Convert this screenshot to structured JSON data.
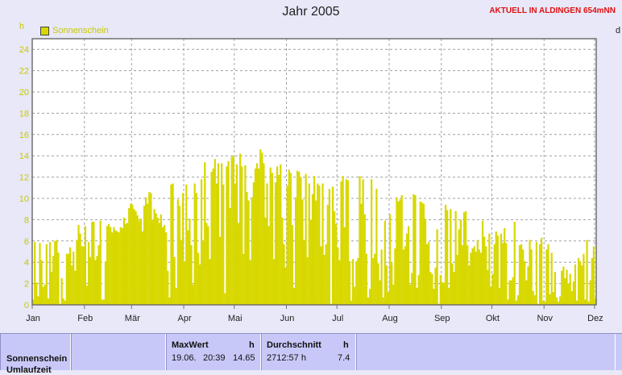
{
  "chart_data": {
    "type": "bar",
    "title": "Jahr 2005",
    "ylabel": "h",
    "ylim": [
      0,
      25
    ],
    "yticks": [
      0,
      2,
      4,
      6,
      8,
      10,
      12,
      14,
      16,
      18,
      20,
      22,
      24
    ],
    "months": [
      "Jan",
      "Feb",
      "Mär",
      "Apr",
      "Mai",
      "Jun",
      "Jul",
      "Aug",
      "Sep",
      "Okt",
      "Nov",
      "Dez"
    ],
    "legend": "top-left",
    "grid": true,
    "series": [
      {
        "name": "Sonnenschein",
        "color": "#d8d800",
        "values": [
          0.5,
          5.9,
          2.1,
          0.8,
          5.8,
          4.2,
          1.7,
          1.9,
          5.7,
          0.6,
          5.9,
          3.1,
          4.6,
          6,
          6.1,
          4.9,
          0.1,
          2.5,
          0.6,
          0.4,
          4.8,
          4.8,
          5.4,
          3.7,
          5,
          3.2,
          6.1,
          7.5,
          6.7,
          5.5,
          5.5,
          7.4,
          1.8,
          5.9,
          4.5,
          7.8,
          7.8,
          4.2,
          4.6,
          5.6,
          7.9,
          0.5,
          0.5,
          4.1,
          7.4,
          7.6,
          7.3,
          6.8,
          7.3,
          7,
          6.9,
          6.8,
          7.3,
          7.2,
          8.2,
          7.6,
          7.7,
          9.1,
          9.5,
          9.4,
          9,
          8.8,
          8.4,
          7.9,
          8.1,
          6.9,
          9.3,
          10.1,
          9.5,
          10.6,
          10.5,
          8,
          9,
          8.6,
          8.2,
          7.7,
          8.5,
          7.3,
          7.5,
          6.8,
          3.2,
          0.7,
          11.3,
          11.4,
          4.5,
          1.6,
          9.9,
          9.3,
          6.1,
          10.5,
          4.1,
          11.3,
          7,
          8.1,
          5.6,
          1.9,
          11.4,
          10.5,
          4.9,
          3.8,
          11.8,
          6,
          13.4,
          7.7,
          7.4,
          4.3,
          12.5,
          12.8,
          13.7,
          11.4,
          13.3,
          6.4,
          13.3,
          11.3,
          1.1,
          13,
          13.5,
          9.1,
          13.9,
          14,
          11.4,
          13.2,
          7.7,
          14.2,
          13,
          4.8,
          13.1,
          10.6,
          9.8,
          4.2,
          10.1,
          11.5,
          12.8,
          13.3,
          12.8,
          14.6,
          14.3,
          13.3,
          8.2,
          11.4,
          7.4,
          12.9,
          12.4,
          4.3,
          11.5,
          13,
          12.2,
          13.2,
          8.2,
          5.7,
          3.5,
          11.2,
          12.7,
          12.4,
          7.5,
          1.6,
          10.1,
          12.6,
          12.5,
          12,
          9.9,
          6.1,
          12.3,
          4.5,
          11.4,
          8,
          10.4,
          12.1,
          9.8,
          11.4,
          11.2,
          5.5,
          11.4,
          4.7,
          5.7,
          9.4,
          10.9,
          0.1,
          11.1,
          8.8,
          7.6,
          5.4,
          4.2,
          11.6,
          12.1,
          7.3,
          11.8,
          11.7,
          4.1,
          0.4,
          4.3,
          1.7,
          4.1,
          4.4,
          12.1,
          9.5,
          11.8,
          8.5,
          4.8,
          0.7,
          1.5,
          11.8,
          4.4,
          4.8,
          10.9,
          3.9,
          2.3,
          5.2,
          0.7,
          7.9,
          3.7,
          1.2,
          8.5,
          4,
          1.9,
          5.3,
          10.1,
          9.7,
          9.9,
          10.3,
          5.2,
          5.5,
          6.7,
          7.4,
          1.9,
          3,
          10.4,
          10.3,
          1.6,
          2.8,
          9.7,
          9.6,
          9.5,
          8.1,
          5.7,
          5.9,
          3.1,
          2.9,
          1.5,
          3.5,
          7.1,
          0.1,
          2.8,
          2.1,
          2.1,
          9.4,
          8.9,
          1.6,
          9,
          3.9,
          3.1,
          8.8,
          4.7,
          7.1,
          8,
          5.6,
          8.7,
          8.8,
          5.6,
          3.7,
          4.9,
          5.3,
          5.5,
          5,
          6.1,
          5.2,
          4.9,
          7.9,
          6.4,
          5.5,
          3.3,
          6.7,
          1.7,
          2.9,
          5.7,
          6.9,
          6.5,
          1.6,
          6.7,
          5.8,
          7.2,
          5.8,
          0.5,
          2.3,
          2.3,
          2.6,
          7.8,
          0.4,
          0.9,
          5.6,
          5.7,
          5.2,
          4.1,
          2.3,
          3.6,
          6.1,
          5.2,
          1.3,
          0.9,
          5.9,
          0.1,
          5.7,
          6.3,
          0.4,
          0.3,
          5.2,
          5.7,
          1,
          4.9,
          1.2,
          3.1,
          0.7,
          0.3,
          0.8,
          3.2,
          3.6,
          2.5,
          3.3,
          2,
          2.9,
          1.3,
          2.2,
          3.8,
          0.4,
          4.4,
          4.1,
          3.7,
          4.8,
          0.5,
          6.1,
          0.3,
          2.3,
          4.4,
          5.5,
          0.6
        ]
      }
    ]
  },
  "header": {
    "title": "Jahr 2005",
    "station": "AKTUELL IN ALDINGEN 654mNN",
    "unit": "h",
    "right_edge_label": "d"
  },
  "panel": {
    "row_label": "Sonnenschein",
    "row_label_2": "Umlaufzeit",
    "max_header": "MaxWert",
    "max_unit": "h",
    "max_date": "19.06.",
    "max_time": "20:39",
    "max_value": "14.65",
    "avg_header": "Durchschnitt",
    "avg_unit": "h",
    "avg_total": "2712:57 h",
    "avg_value": "7.4"
  }
}
